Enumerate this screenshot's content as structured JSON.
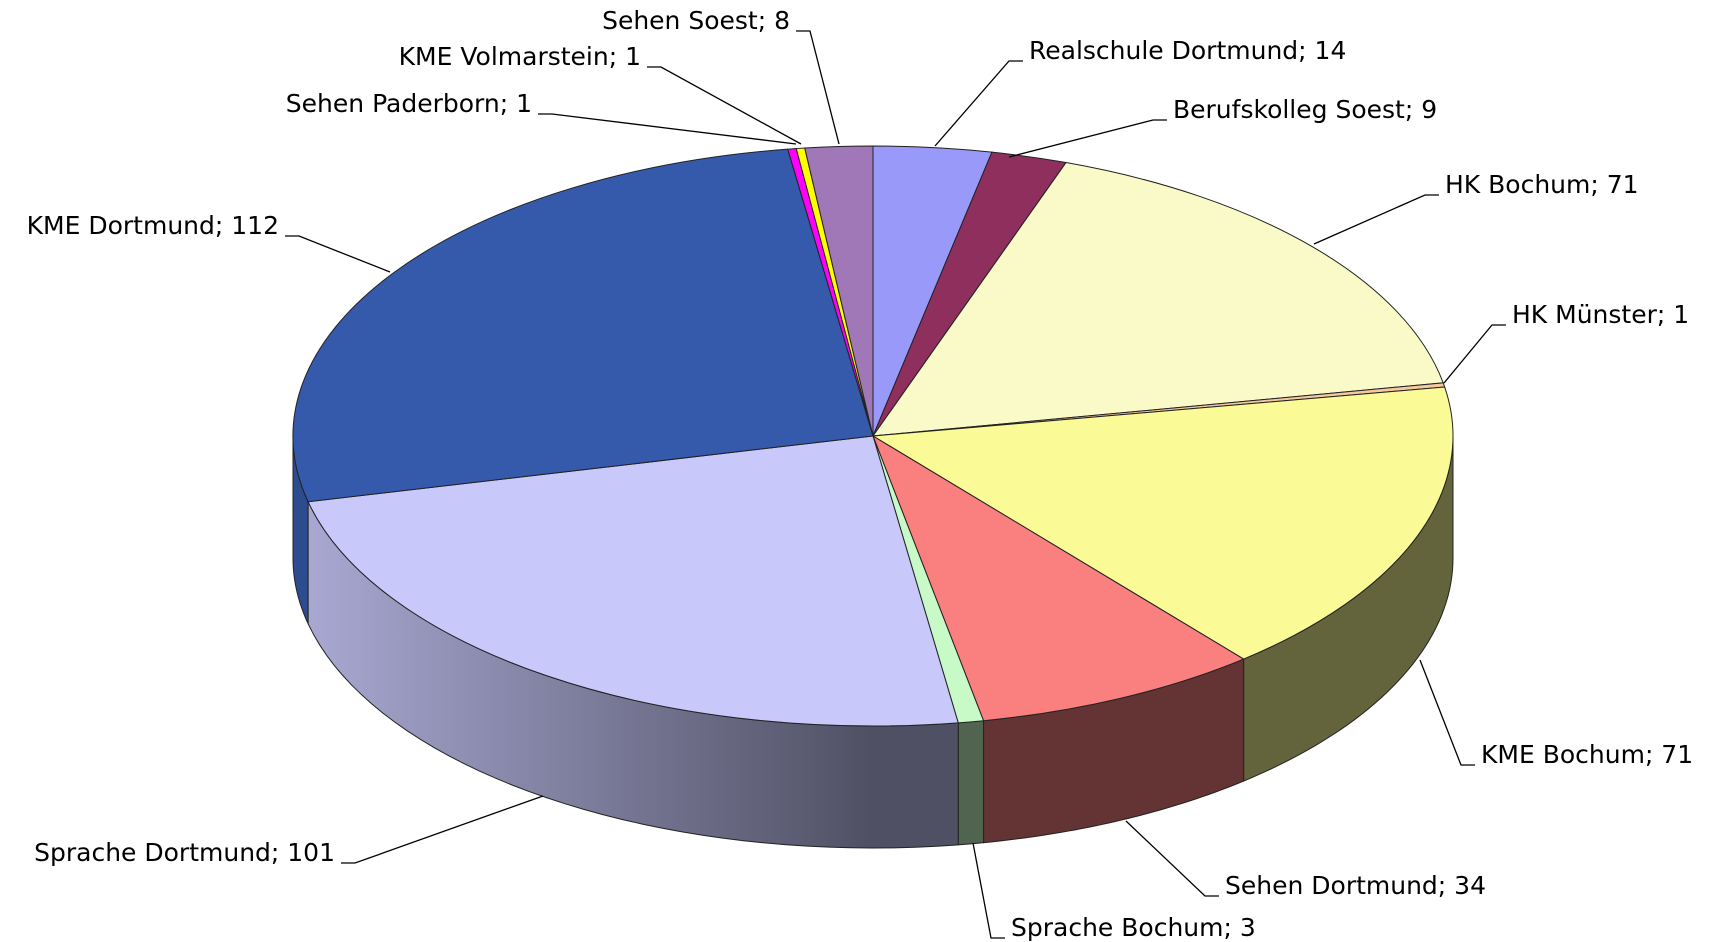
{
  "chart_data": {
    "type": "pie",
    "categories": [
      "Realschule Dortmund",
      "Berufskolleg Soest",
      "HK Bochum",
      "HK Münster",
      "KME Bochum",
      "Sehen Dortmund",
      "Sprache Bochum",
      "Sprache Dortmund",
      "KME Dortmund",
      "Sehen Paderborn",
      "KME Volmarstein",
      "Sehen Soest"
    ],
    "values": [
      14,
      9,
      71,
      1,
      71,
      34,
      3,
      101,
      112,
      1,
      1,
      8
    ],
    "value_labels": [
      "Realschule Dortmund; 14",
      "Berufskolleg Soest; 9",
      "HK Bochum; 71",
      "HK Münster; 1",
      "KME Bochum; 71",
      "Sehen Dortmund; 34",
      "Sprache Bochum; 3",
      "Sprache Dortmund; 101",
      "KME Dortmund; 112",
      "Sehen Paderborn; 1",
      "KME Volmarstein; 1",
      "Sehen Soest; 8"
    ],
    "colors": [
      "#9999fa",
      "#8e2f5e",
      "#fafac8",
      "#f5c8a0",
      "#fafa96",
      "#fa8080",
      "#c8fac8",
      "#c8c8fa",
      "#3559ab",
      "#ff00ff",
      "#ffff00",
      "#a078b8"
    ]
  }
}
